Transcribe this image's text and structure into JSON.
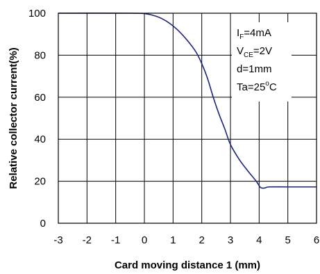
{
  "chart_data": {
    "type": "line",
    "title": "",
    "xlabel": "Card moving distance 1 (mm)",
    "ylabel": "Relative collector current(%)",
    "xlim": [
      -3,
      6
    ],
    "ylim": [
      0,
      100
    ],
    "x_ticks": [
      "-3",
      "-2",
      "-1",
      "0",
      "1",
      "2",
      "3",
      "4",
      "5",
      "6"
    ],
    "y_ticks": [
      "0",
      "20",
      "40",
      "60",
      "80",
      "100"
    ],
    "grid": true,
    "line_color": "#1a237e",
    "series": [
      {
        "x": [
          -3,
          -0.5,
          0,
          0.3,
          0.6,
          0.9,
          1.2,
          1.5,
          1.8,
          2.0,
          2.2,
          2.4,
          2.6,
          2.8,
          3.0,
          3.3,
          3.6,
          3.9,
          4.05,
          4.2,
          4.35,
          5,
          6
        ],
        "y": [
          100,
          100,
          99.8,
          99,
          97.5,
          95,
          91.5,
          87,
          81.5,
          76,
          69,
          60,
          52,
          45,
          37.5,
          30.5,
          25,
          20,
          17,
          16.8,
          17.3,
          17.3,
          17.3
        ]
      }
    ],
    "conditions": {
      "if": {
        "main": "I",
        "sub": "F",
        "rest": "=4mA"
      },
      "vce": {
        "main": "V",
        "sub": "CE",
        "rest": "=2V"
      },
      "d": "d=1mm",
      "ta": {
        "main": "Ta=25",
        "sup": "o",
        "rest": "C"
      }
    }
  }
}
